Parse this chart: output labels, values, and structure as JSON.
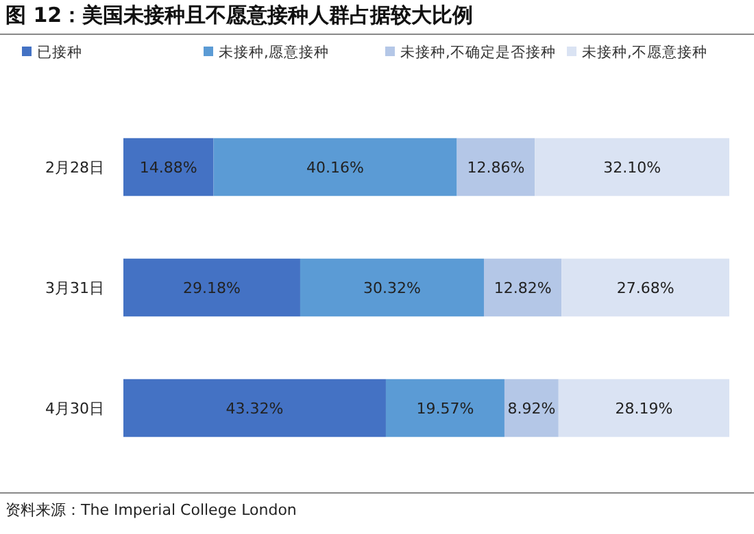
{
  "chart_data": {
    "type": "bar",
    "title": "图 12：美国未接种且不愿意接种人群占据较大比例",
    "orientation": "horizontal",
    "stacked": true,
    "categories": [
      "2月28日",
      "3月31日",
      "4月30日"
    ],
    "xlim": [
      0,
      100
    ],
    "tick_labels": "y",
    "legend": "top",
    "series": [
      {
        "name": "已接种",
        "color": "#4472c4",
        "values": [
          14.88,
          29.18,
          43.32
        ],
        "value_labels": [
          "14.88%",
          "29.18%",
          "43.32%"
        ]
      },
      {
        "name": "未接种,愿意接种",
        "color": "#5b9bd5",
        "values": [
          40.16,
          30.32,
          19.57
        ],
        "value_labels": [
          "40.16%",
          "30.32%",
          "19.57%"
        ]
      },
      {
        "name": "未接种,不确定是否接种",
        "color": "#b4c7e7",
        "values": [
          12.86,
          12.82,
          8.92
        ],
        "value_labels": [
          "12.86%",
          "12.82%",
          "8.92%"
        ]
      },
      {
        "name": "未接种,不愿意接种",
        "color": "#dae3f3",
        "values": [
          32.1,
          27.68,
          28.19
        ],
        "value_labels": [
          "32.10%",
          "27.68%",
          "28.19%"
        ]
      }
    ],
    "annotations": [
      "资料来源：The Imperial College London"
    ]
  }
}
